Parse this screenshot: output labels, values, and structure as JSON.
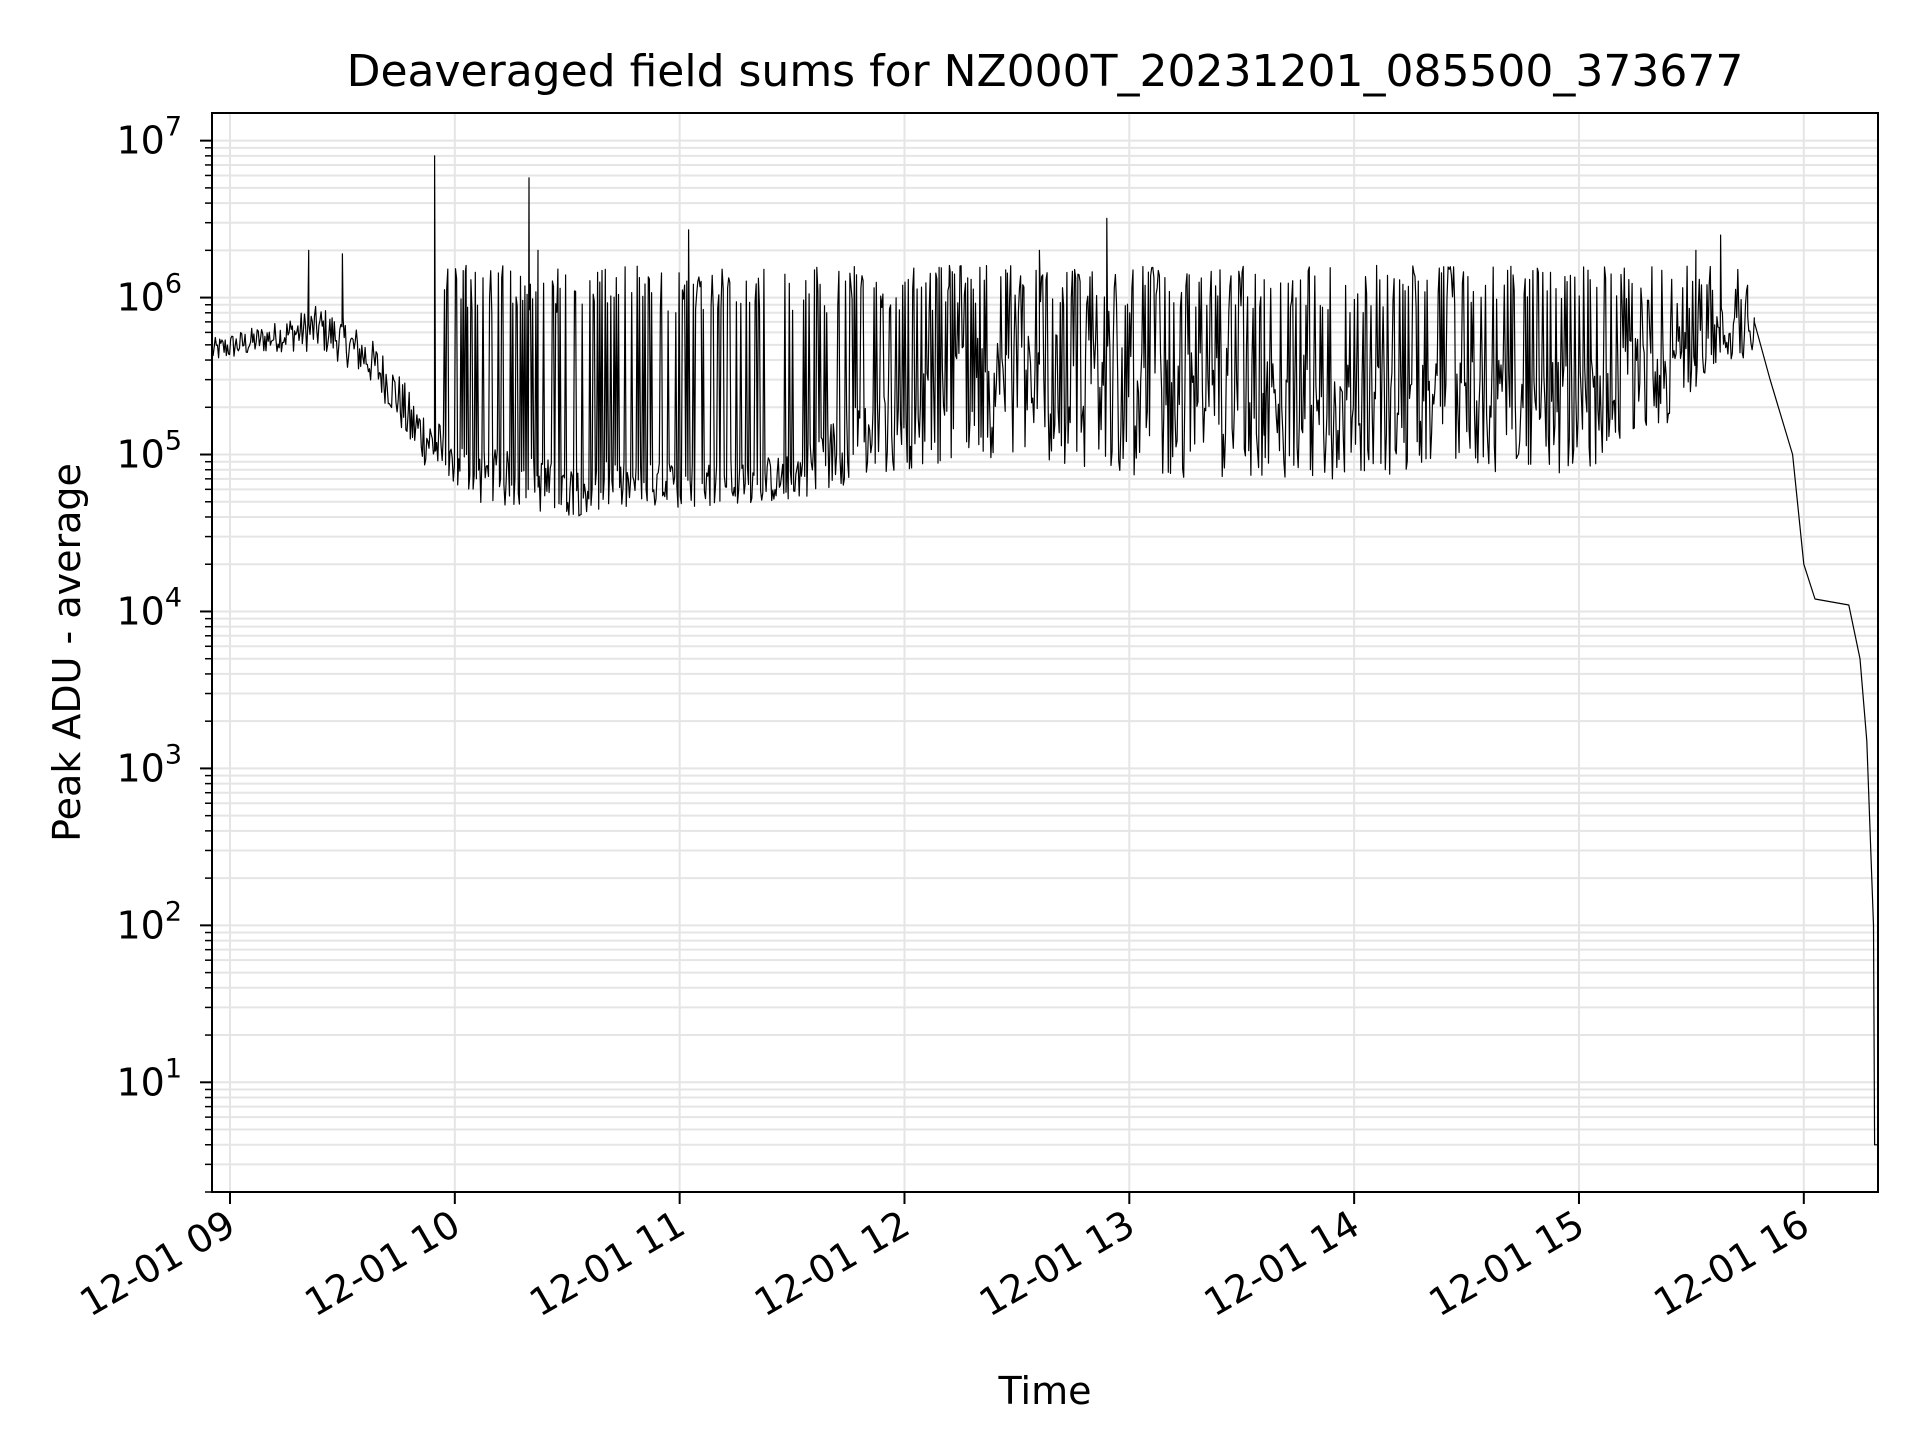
{
  "chart_data": {
    "type": "line",
    "title": "Deaveraged field sums for NZ000T_20231201_085500_373677",
    "xlabel": "Time",
    "ylabel": "Peak ADU - average",
    "yscale": "log",
    "ylim": [
      2,
      15000000
    ],
    "xlim_hours": [
      8.92,
      16.33
    ],
    "grid": true,
    "line_color": "#000000",
    "grid_color": "#e5e5e5",
    "x_ticks": [
      {
        "hour": 9,
        "label": "12-01 09"
      },
      {
        "hour": 10,
        "label": "12-01 10"
      },
      {
        "hour": 11,
        "label": "12-01 11"
      },
      {
        "hour": 12,
        "label": "12-01 12"
      },
      {
        "hour": 13,
        "label": "12-01 13"
      },
      {
        "hour": 14,
        "label": "12-01 14"
      },
      {
        "hour": 15,
        "label": "12-01 15"
      },
      {
        "hour": 16,
        "label": "12-01 16"
      }
    ],
    "y_ticks": [
      {
        "value": 10,
        "base": "10",
        "exp": "1"
      },
      {
        "value": 100,
        "base": "10",
        "exp": "2"
      },
      {
        "value": 1000,
        "base": "10",
        "exp": "3"
      },
      {
        "value": 10000,
        "base": "10",
        "exp": "4"
      },
      {
        "value": 100000,
        "base": "10",
        "exp": "5"
      },
      {
        "value": 1000000,
        "base": "10",
        "exp": "6"
      },
      {
        "value": 10000000,
        "base": "10",
        "exp": "7"
      }
    ],
    "series": [
      {
        "name": "field sums",
        "baseline_envelope": [
          {
            "hour": 8.92,
            "low": 380000,
            "high": 550000
          },
          {
            "hour": 9.2,
            "low": 450000,
            "high": 700000
          },
          {
            "hour": 9.4,
            "low": 450000,
            "high": 900000
          },
          {
            "hour": 9.6,
            "low": 300000,
            "high": 600000
          },
          {
            "hour": 9.8,
            "low": 100000,
            "high": 250000
          },
          {
            "hour": 10.0,
            "low": 50000,
            "high": 120000
          },
          {
            "hour": 10.5,
            "low": 40000,
            "high": 90000
          },
          {
            "hour": 11.0,
            "low": 45000,
            "high": 90000
          },
          {
            "hour": 11.5,
            "low": 50000,
            "high": 100000
          },
          {
            "hour": 12.0,
            "low": 80000,
            "high": 300000
          },
          {
            "hour": 12.5,
            "low": 100000,
            "high": 700000
          },
          {
            "hour": 13.0,
            "low": 70000,
            "high": 500000
          },
          {
            "hour": 13.5,
            "low": 70000,
            "high": 500000
          },
          {
            "hour": 14.0,
            "low": 70000,
            "high": 400000
          },
          {
            "hour": 14.5,
            "low": 80000,
            "high": 400000
          },
          {
            "hour": 15.0,
            "low": 70000,
            "high": 400000
          },
          {
            "hour": 15.4,
            "low": 150000,
            "high": 700000
          },
          {
            "hour": 15.6,
            "low": 350000,
            "high": 900000
          },
          {
            "hour": 15.75,
            "low": 400000,
            "high": 900000
          }
        ],
        "spikes": [
          {
            "hour": 9.35,
            "value": 2000000
          },
          {
            "hour": 9.5,
            "value": 1900000
          },
          {
            "hour": 9.91,
            "value": 8000000
          },
          {
            "hour": 10.05,
            "value": 1600000
          },
          {
            "hour": 10.33,
            "value": 5800000
          },
          {
            "hour": 10.37,
            "value": 2000000
          },
          {
            "hour": 11.04,
            "value": 2700000
          },
          {
            "hour": 11.6,
            "value": 1500000
          },
          {
            "hour": 12.2,
            "value": 1600000
          },
          {
            "hour": 12.45,
            "value": 1500000
          },
          {
            "hour": 12.6,
            "value": 2000000
          },
          {
            "hour": 12.9,
            "value": 3200000
          },
          {
            "hour": 13.6,
            "value": 1300000
          },
          {
            "hour": 14.1,
            "value": 1600000
          },
          {
            "hour": 15.05,
            "value": 1300000
          },
          {
            "hour": 15.52,
            "value": 2000000
          },
          {
            "hour": 15.63,
            "value": 2500000
          },
          {
            "hour": 15.75,
            "value": 1200000
          }
        ],
        "decline": [
          {
            "hour": 15.78,
            "value": 700000
          },
          {
            "hour": 15.85,
            "value": 300000
          },
          {
            "hour": 15.95,
            "value": 100000
          },
          {
            "hour": 16.0,
            "value": 20000
          },
          {
            "hour": 16.05,
            "value": 12000
          },
          {
            "hour": 16.2,
            "value": 11000
          },
          {
            "hour": 16.25,
            "value": 5000
          },
          {
            "hour": 16.28,
            "value": 1500
          },
          {
            "hour": 16.31,
            "value": 100
          },
          {
            "hour": 16.315,
            "value": 4
          },
          {
            "hour": 16.33,
            "value": 4
          }
        ]
      }
    ]
  }
}
